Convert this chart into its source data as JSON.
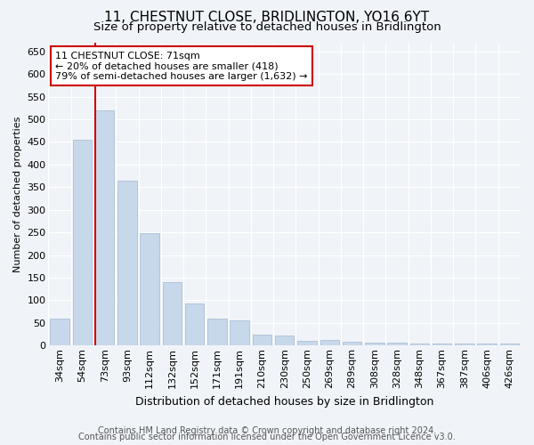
{
  "title": "11, CHESTNUT CLOSE, BRIDLINGTON, YO16 6YT",
  "subtitle": "Size of property relative to detached houses in Bridlington",
  "xlabel": "Distribution of detached houses by size in Bridlington",
  "ylabel": "Number of detached properties",
  "categories": [
    "34sqm",
    "54sqm",
    "73sqm",
    "93sqm",
    "112sqm",
    "132sqm",
    "152sqm",
    "171sqm",
    "191sqm",
    "210sqm",
    "230sqm",
    "250sqm",
    "269sqm",
    "289sqm",
    "308sqm",
    "328sqm",
    "348sqm",
    "367sqm",
    "387sqm",
    "406sqm",
    "426sqm"
  ],
  "values": [
    60,
    455,
    520,
    365,
    248,
    140,
    93,
    60,
    55,
    25,
    23,
    10,
    12,
    8,
    6,
    6,
    5,
    5,
    5,
    4,
    4
  ],
  "bar_color": "#c8d8eb",
  "bar_edge_color": "#a0b8d0",
  "highlight_line_color": "#cc0000",
  "annotation_box_color": "#cc0000",
  "annotation_line1": "11 CHESTNUT CLOSE: 71sqm",
  "annotation_line2": "← 20% of detached houses are smaller (418)",
  "annotation_line3": "79% of semi-detached houses are larger (1,632) →",
  "ylim": [
    0,
    670
  ],
  "yticks": [
    0,
    50,
    100,
    150,
    200,
    250,
    300,
    350,
    400,
    450,
    500,
    550,
    600,
    650
  ],
  "footer_line1": "Contains HM Land Registry data © Crown copyright and database right 2024.",
  "footer_line2": "Contains public sector information licensed under the Open Government Licence v3.0.",
  "bg_color": "#f0f4f8",
  "plot_bg_color": "#f0f4f8",
  "grid_color": "#ffffff",
  "title_fontsize": 11,
  "subtitle_fontsize": 9.5,
  "xlabel_fontsize": 9,
  "ylabel_fontsize": 8,
  "tick_fontsize": 8,
  "footer_fontsize": 7,
  "annotation_fontsize": 8
}
